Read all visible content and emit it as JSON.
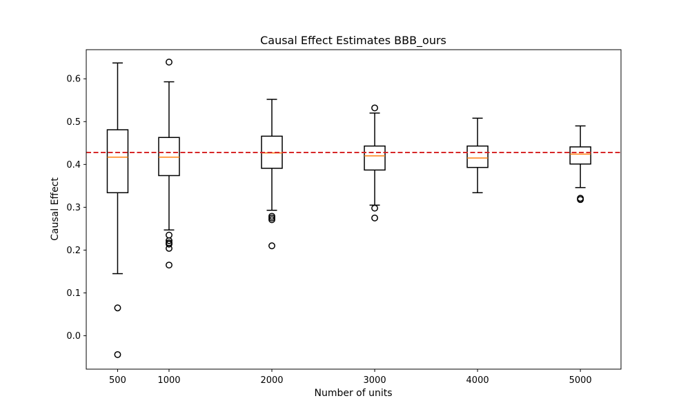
{
  "chart_data": {
    "type": "boxplot",
    "title": "Causal Effect Estimates BBB_ours",
    "xlabel": "Number of units",
    "ylabel": "Causal Effect",
    "x_ticks": [
      500,
      1000,
      2000,
      3000,
      4000,
      5000
    ],
    "y_ticks": [
      "0.0",
      "0.1",
      "0.2",
      "0.3",
      "0.4",
      "0.5",
      "0.6"
    ],
    "xlim": [
      195,
      5395
    ],
    "ylim": [
      -0.078,
      0.668
    ],
    "reference_line": {
      "y": 0.428,
      "color": "#d62728",
      "style": "dashed"
    },
    "colors": {
      "box": "#000000",
      "median": "#ff7f0e",
      "reference": "#d62728"
    },
    "grid": false,
    "boxes": [
      {
        "x": 500,
        "whisker_low": 0.145,
        "q1": 0.334,
        "median": 0.417,
        "q3": 0.481,
        "whisker_high": 0.637,
        "outliers": [
          0.065,
          -0.044
        ]
      },
      {
        "x": 1000,
        "whisker_low": 0.247,
        "q1": 0.374,
        "median": 0.417,
        "q3": 0.463,
        "whisker_high": 0.593,
        "outliers": [
          0.639,
          0.235,
          0.222,
          0.217,
          0.214,
          0.204,
          0.165
        ]
      },
      {
        "x": 2000,
        "whisker_low": 0.293,
        "q1": 0.391,
        "median": 0.427,
        "q3": 0.466,
        "whisker_high": 0.552,
        "outliers": [
          0.279,
          0.275,
          0.271,
          0.21
        ]
      },
      {
        "x": 3000,
        "whisker_low": 0.305,
        "q1": 0.387,
        "median": 0.42,
        "q3": 0.443,
        "whisker_high": 0.52,
        "outliers": [
          0.532,
          0.298,
          0.275
        ]
      },
      {
        "x": 4000,
        "whisker_low": 0.334,
        "q1": 0.393,
        "median": 0.415,
        "q3": 0.443,
        "whisker_high": 0.508,
        "outliers": []
      },
      {
        "x": 5000,
        "whisker_low": 0.346,
        "q1": 0.401,
        "median": 0.424,
        "q3": 0.441,
        "whisker_high": 0.49,
        "outliers": [
          0.321,
          0.318
        ]
      }
    ]
  }
}
